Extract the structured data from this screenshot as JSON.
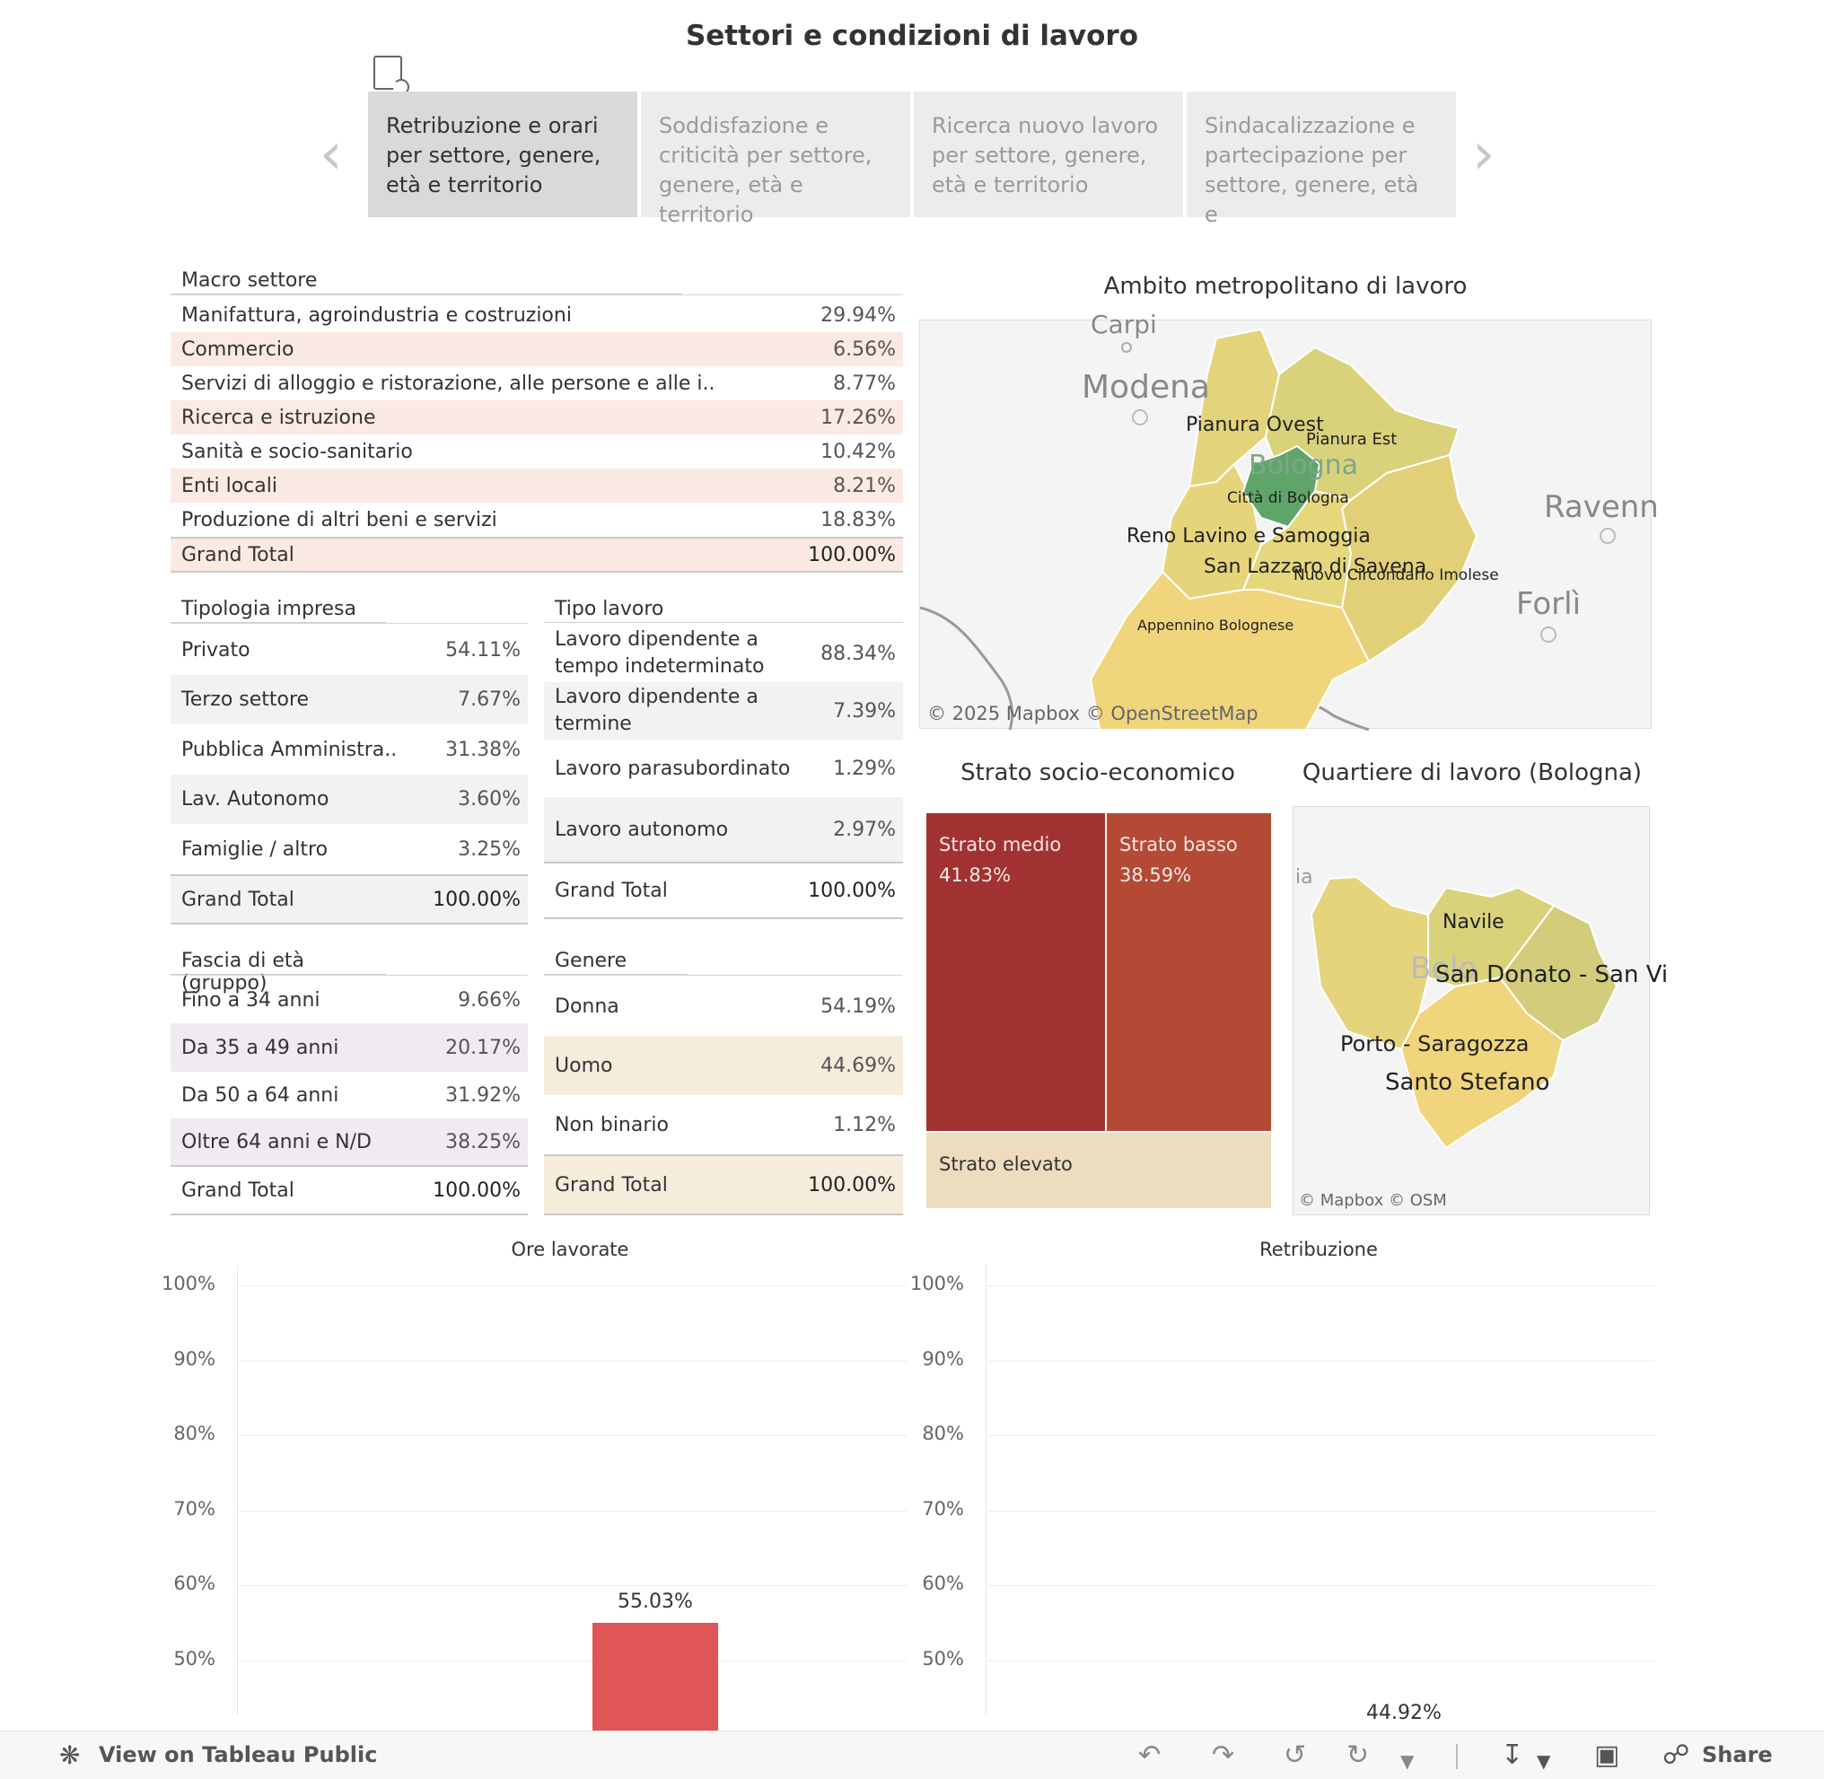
{
  "header": {
    "title": "Settori e condizioni di lavoro"
  },
  "nav": {
    "prev_icon": "chevron-left-icon",
    "next_icon": "chevron-right-icon",
    "tabs": [
      {
        "label": "Retribuzione e orari per settore, genere, età e territorio"
      },
      {
        "label": "Soddisfazione e criticità per settore, genere, età e territorio"
      },
      {
        "label": "Ricerca nuovo lavoro per settore, genere, età e territorio"
      },
      {
        "label": "Sindacalizzazione e partecipazione per settore, genere, età e"
      }
    ]
  },
  "macro_settore": {
    "header": "Macro settore",
    "rows": [
      {
        "label": "Manifattura, agroindustria e costruzioni",
        "value": "29.94%"
      },
      {
        "label": "Commercio",
        "value": "6.56%"
      },
      {
        "label": "Servizi di alloggio e ristorazione, alle persone e alle i..",
        "value": "8.77%"
      },
      {
        "label": "Ricerca e istruzione",
        "value": "17.26%"
      },
      {
        "label": "Sanità e socio-sanitario",
        "value": "10.42%"
      },
      {
        "label": "Enti locali",
        "value": "8.21%"
      },
      {
        "label": "Produzione di altri beni e servizi",
        "value": "18.83%"
      }
    ],
    "total": {
      "label": "Grand Total",
      "value": "100.00%"
    }
  },
  "tipologia_impresa": {
    "header": "Tipologia impresa",
    "rows": [
      {
        "label": "Privato",
        "value": "54.11%"
      },
      {
        "label": "Terzo settore",
        "value": "7.67%"
      },
      {
        "label": "Pubblica Amministra..",
        "value": "31.38%"
      },
      {
        "label": "Lav. Autonomo",
        "value": "3.60%"
      },
      {
        "label": "Famiglie / altro",
        "value": "3.25%"
      }
    ],
    "total": {
      "label": "Grand Total",
      "value": "100.00%"
    }
  },
  "tipo_lavoro": {
    "header": "Tipo lavoro",
    "rows": [
      {
        "label": "Lavoro dipendente a tempo indeterminato",
        "value": "88.34%"
      },
      {
        "label": "Lavoro dipendente a termine",
        "value": "7.39%"
      },
      {
        "label": "Lavoro parasubordinato",
        "value": "1.29%"
      },
      {
        "label": "Lavoro autonomo",
        "value": "2.97%"
      }
    ],
    "total": {
      "label": "Grand Total",
      "value": "100.00%"
    }
  },
  "fascia_eta": {
    "header": "Fascia di età (gruppo)",
    "rows": [
      {
        "label": "Fino a 34 anni",
        "value": "9.66%"
      },
      {
        "label": "Da 35 a 49 anni",
        "value": "20.17%"
      },
      {
        "label": "Da 50 a 64 anni",
        "value": "31.92%"
      },
      {
        "label": "Oltre 64 anni e N/D",
        "value": "38.25%"
      }
    ],
    "total": {
      "label": "Grand Total",
      "value": "100.00%"
    }
  },
  "genere": {
    "header": "Genere",
    "rows": [
      {
        "label": "Donna",
        "value": "54.19%"
      },
      {
        "label": "Uomo",
        "value": "44.69%"
      },
      {
        "label": "Non binario",
        "value": "1.12%"
      }
    ],
    "total": {
      "label": "Grand Total",
      "value": "100.00%"
    }
  },
  "map_metro": {
    "title": "Ambito metropolitano di lavoro",
    "places": [
      "Carpi",
      "Modena",
      "Ravenn",
      "Forlì",
      "Bologna"
    ],
    "areas": [
      "Pianura Ovest",
      "Pianura Est",
      "Città di Bologna",
      "Reno Lavino e Samoggia",
      "San Lazzaro di Savena",
      "Nuovo Circondario Imolese",
      "Appennino Bolognese"
    ],
    "attribution": "© 2025 Mapbox  © OpenStreetMap"
  },
  "strato": {
    "title": "Strato socio-economico",
    "cells": [
      {
        "label": "Strato medio",
        "value": "41.83%",
        "color": "#a23232"
      },
      {
        "label": "Strato basso",
        "value": "38.59%",
        "color": "#b44a35"
      },
      {
        "label": "Strato elevato",
        "value": "",
        "color": "#eedcbf"
      }
    ]
  },
  "map_quartiere": {
    "title": "Quartiere di lavoro (Bologna)",
    "areas": [
      "Navile",
      "San Donato - San Vi",
      "Porto - Saragozza",
      "Santo Stefano"
    ],
    "places": [
      "ia",
      "Bolo"
    ],
    "attribution": "© Mapbox  © OSM"
  },
  "charts": [
    {
      "type": "bar",
      "title": "Ore lavorate",
      "yticks": [
        "100%",
        "90%",
        "80%",
        "70%",
        "60%",
        "50%"
      ],
      "ylim": [
        47,
        100
      ],
      "values": [
        55.03
      ],
      "value_labels": [
        "55.03%"
      ],
      "bar_color": "#e05555"
    },
    {
      "type": "bar",
      "title": "Retribuzione",
      "yticks": [
        "100%",
        "90%",
        "80%",
        "70%",
        "60%",
        "50%"
      ],
      "ylim": [
        47,
        100
      ],
      "values": [],
      "value_labels": [
        "44.92%"
      ]
    }
  ],
  "footer": {
    "view_label": "View on Tableau Public",
    "share_label": "Share",
    "icons": [
      "undo-icon",
      "redo-icon",
      "revert-icon",
      "refresh-icon",
      "download-icon",
      "fullscreen-icon",
      "share-icon"
    ]
  },
  "colors": {
    "macro_alt": "#fbe9e3",
    "age_alt": "#f2eaf2",
    "gender_alt": "#f5ecdc",
    "gray_alt": "#f2f2f2",
    "map_yellow": "#e3d37a",
    "map_green": "#5fa56a"
  }
}
